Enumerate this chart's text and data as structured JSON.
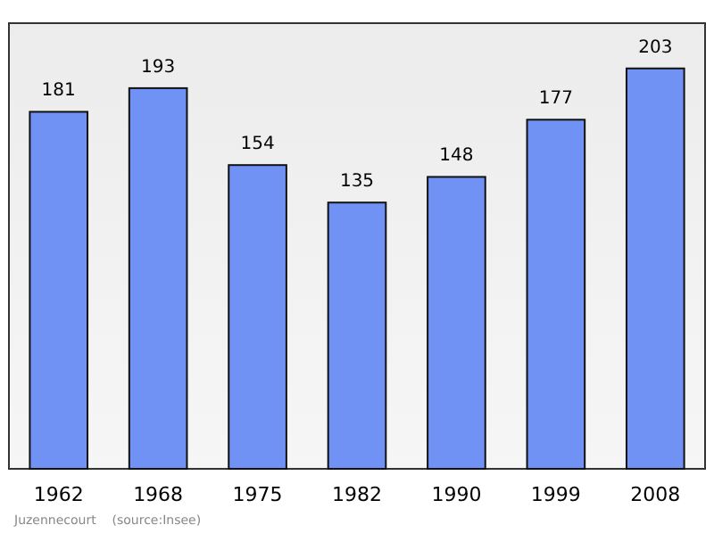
{
  "chart_data": {
    "type": "bar",
    "categories": [
      "1962",
      "1968",
      "1975",
      "1982",
      "1990",
      "1999",
      "2008"
    ],
    "values": [
      181,
      193,
      154,
      135,
      148,
      177,
      203
    ],
    "color": "#7092f5",
    "data_labels": true,
    "annotations": [
      "Juzennecourt    (source:Insee)"
    ]
  }
}
